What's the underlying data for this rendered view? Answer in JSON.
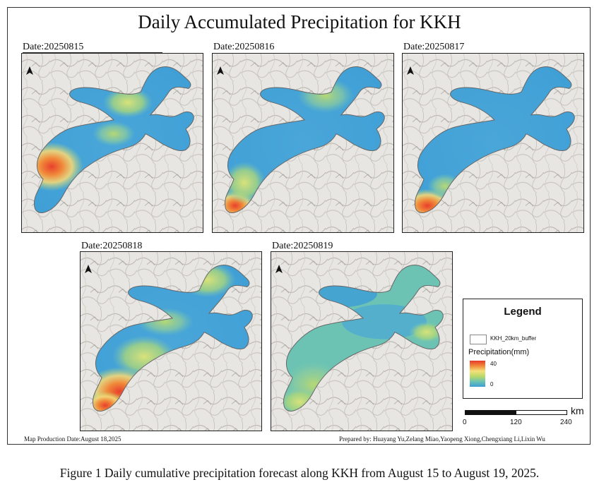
{
  "title": "Daily Accumulated Precipitation for KKH",
  "panels": [
    {
      "date_label": "Date:20250815",
      "hotspots": [
        {
          "location": "southwest bulge",
          "intensity": "high"
        }
      ]
    },
    {
      "date_label": "Date:20250816",
      "hotspots": [
        {
          "location": "southern tip",
          "intensity": "high"
        }
      ]
    },
    {
      "date_label": "Date:20250817",
      "hotspots": [
        {
          "location": "southern tip",
          "intensity": "very high"
        }
      ]
    },
    {
      "date_label": "Date:20250818",
      "hotspots": [
        {
          "location": "southwest arm",
          "intensity": "very high"
        }
      ]
    },
    {
      "date_label": "Date:20250819",
      "hotspots": [
        {
          "location": "southwest arm",
          "intensity": "moderate"
        }
      ]
    }
  ],
  "legend": {
    "title": "Legend",
    "buffer_label": "KKH_20km_buffer",
    "precip_label": "Precipitation(mm)",
    "max_label": "40",
    "min_label": "0",
    "colors": [
      "#e6382a",
      "#f28a3a",
      "#f5e07a",
      "#b9d968",
      "#6cc3b3",
      "#3a9ed4"
    ]
  },
  "scale": {
    "unit": "km",
    "ticks": [
      "0",
      "120",
      "240"
    ]
  },
  "footer": {
    "production_date": "Map Production Date:August 18,2025",
    "prepared_by": "Prepared by: Huayang Yu,Zelang Miao,Yaopeng Xiong,Chengxiang Li,Lixin Wu"
  },
  "caption": "Figure 1 Daily cumulative precipitation forecast along KKH from August 15 to August 19, 2025.",
  "icons": [
    "north-arrow-icon"
  ]
}
